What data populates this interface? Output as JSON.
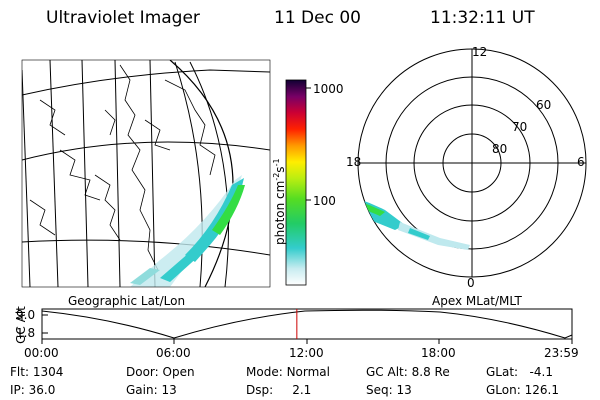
{
  "header": {
    "instrument": "Ultraviolet Imager",
    "date": "11 Dec 00",
    "time": "11:32:11 UT"
  },
  "left_panel": {
    "caption": "Geographic Lat/Lon"
  },
  "right_panel": {
    "caption": "Apex MLat/MLT",
    "mlt_labels": [
      "12",
      "18",
      "6",
      "0"
    ],
    "lat_labels": [
      "60",
      "70",
      "80"
    ]
  },
  "colorbar": {
    "unit_label": "photon cm",
    "unit_exp1": "-2",
    "unit_mid": "s",
    "unit_exp2": "-1",
    "tick_labels": [
      "1000",
      "100"
    ]
  },
  "orbit_plot": {
    "ylabel": "GC Alt",
    "y_ticks": [
      "9.0",
      "1.8"
    ],
    "x_ticks": [
      "00:00",
      "06:00",
      "12:00",
      "18:00",
      "23:59"
    ],
    "current_time_hours": 11.54
  },
  "info": {
    "flt_label": "Flt:",
    "flt_value": "1304",
    "ip_label": "IP:",
    "ip_value": "36.0",
    "door_label": "Door:",
    "door_value": "Open",
    "gain_label": "Gain:",
    "gain_value": "13",
    "mode_label": "Mode:",
    "mode_value": "Normal",
    "dsp_label": "Dsp:",
    "dsp_value": "2.1",
    "gcalt_label": "GC Alt:",
    "gcalt_value": "8.8 Re",
    "seq_label": "Seq:",
    "seq_value": "13",
    "glat_label": "GLat:",
    "glat_value": "-4.1",
    "glon_label": "GLon:",
    "glon_value": "126.1"
  },
  "colors": {
    "cyan": "#33cccc",
    "green": "#33dd44",
    "marker_red": "#cc0000"
  }
}
